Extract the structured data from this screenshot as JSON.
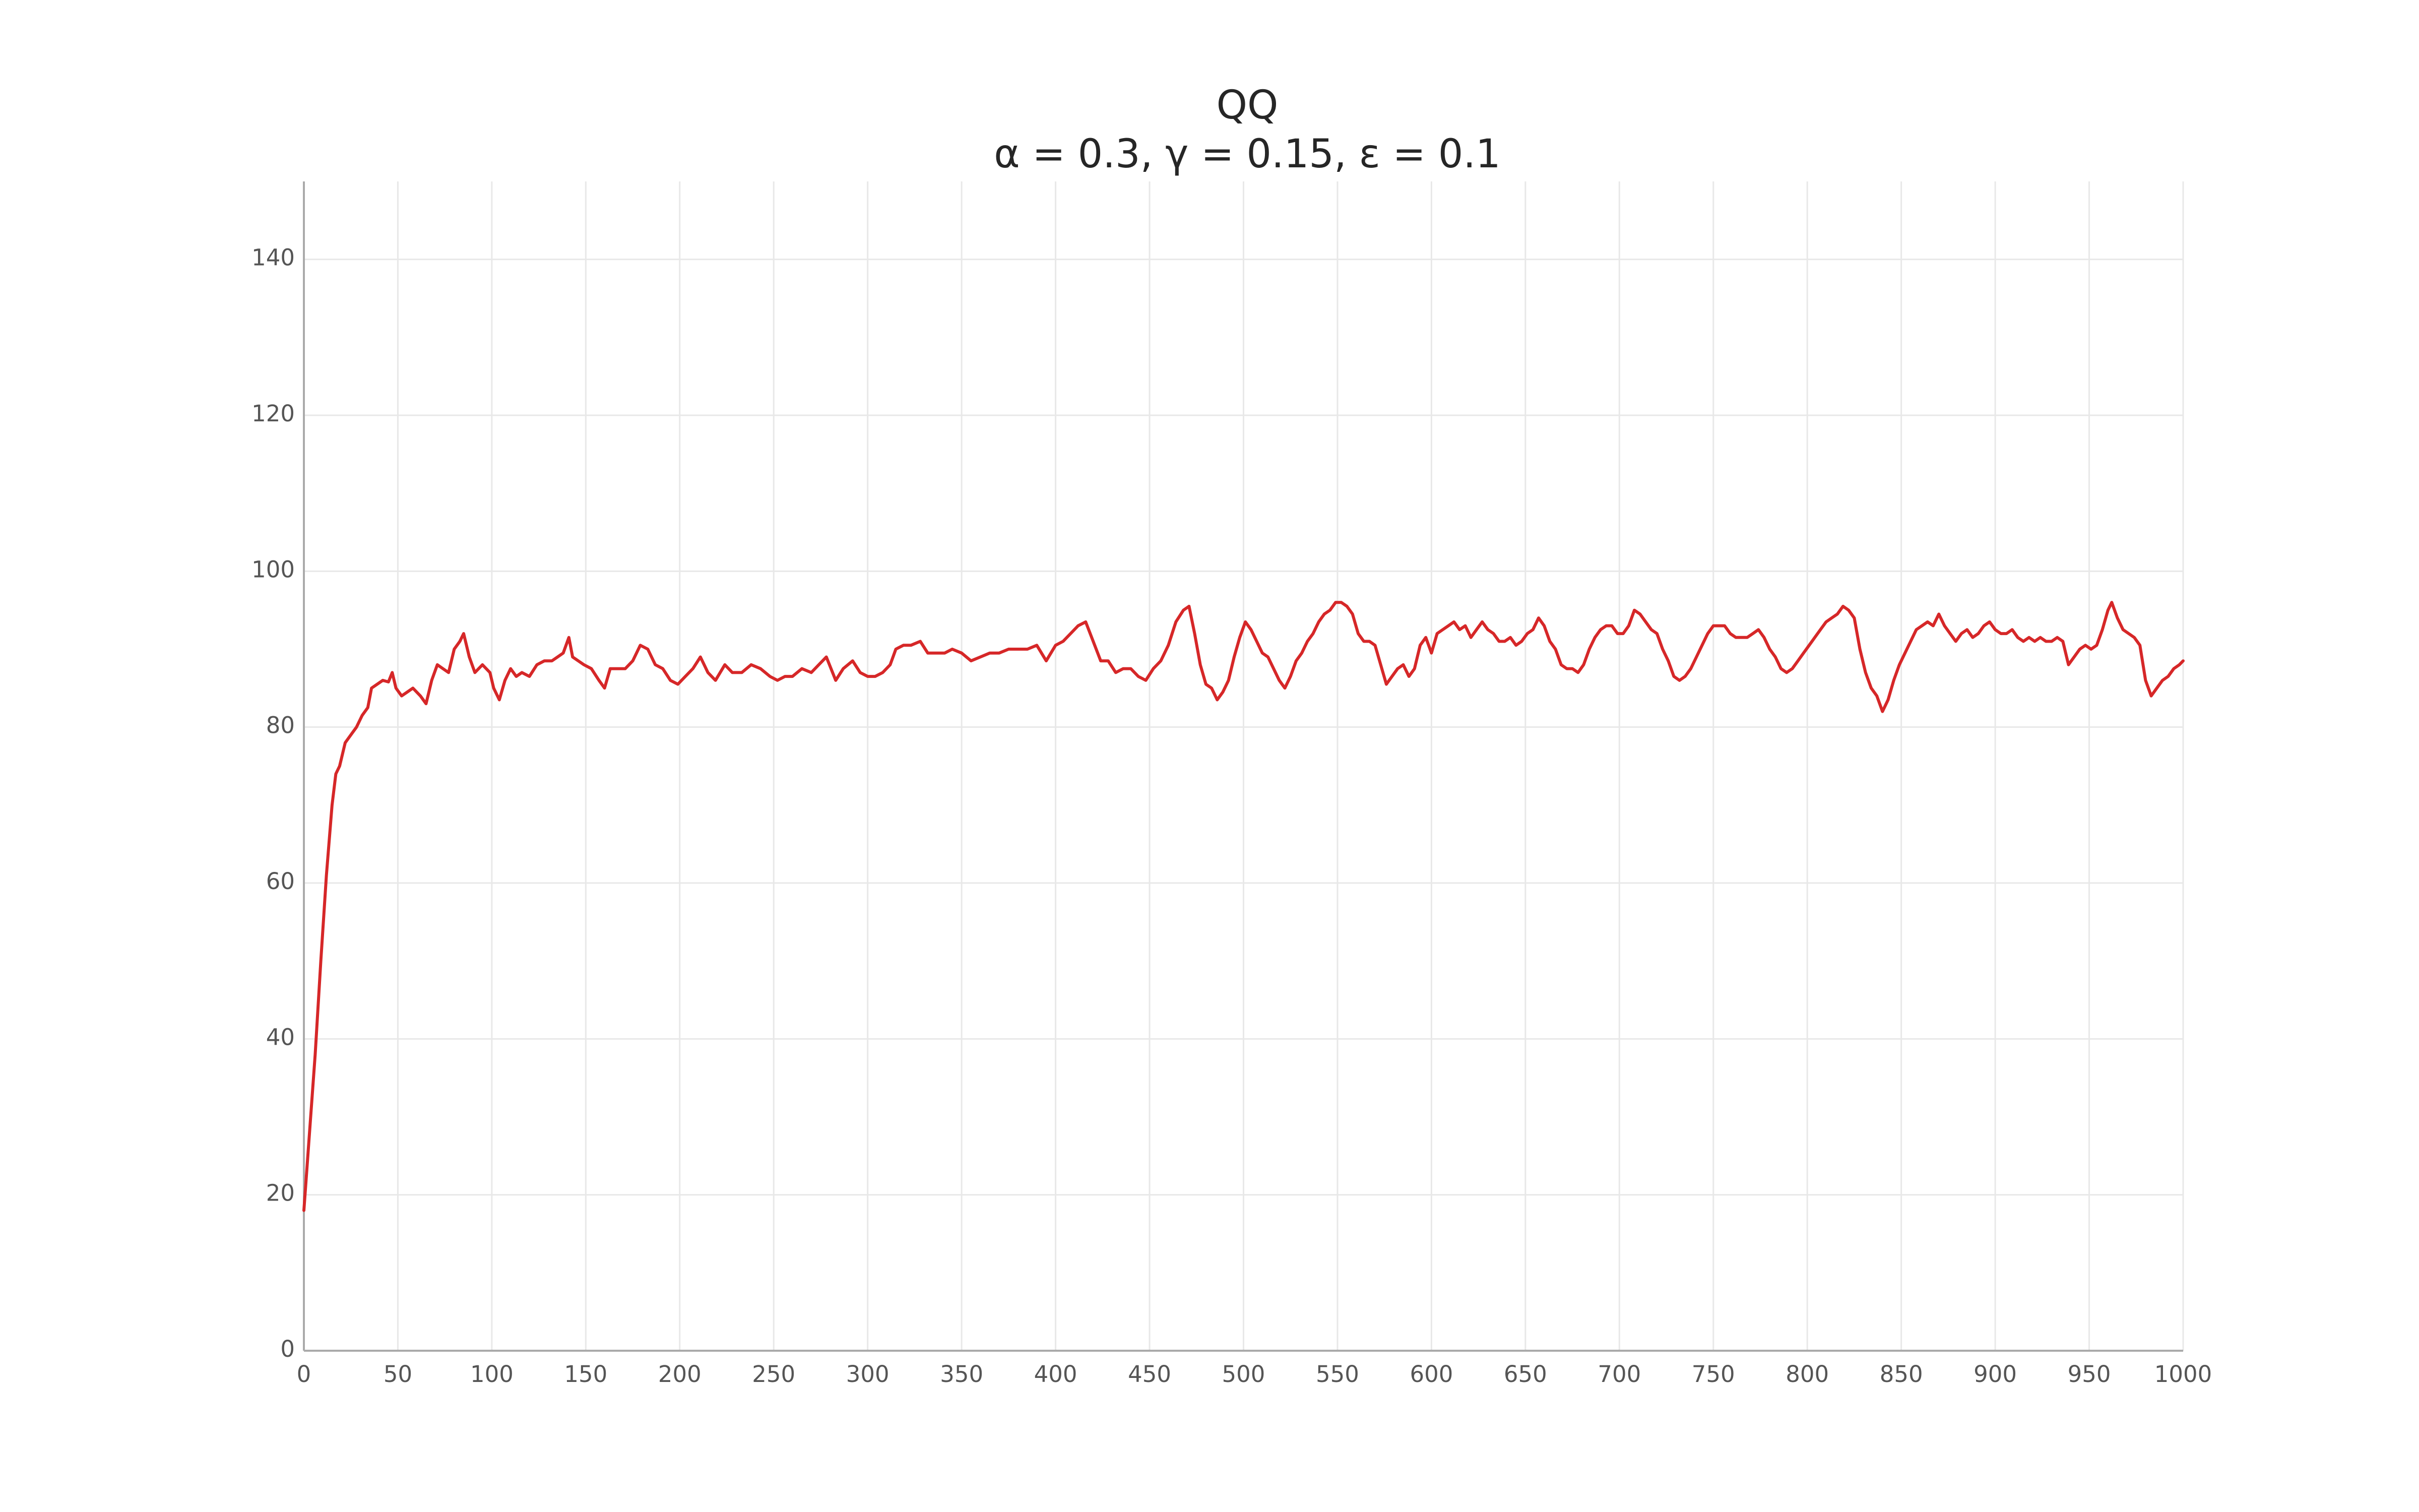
{
  "chart_data": {
    "type": "line",
    "title": "QQ",
    "subtitle": "α = 0.3, γ = 0.15, ε = 0.1",
    "xlabel": "",
    "ylabel": "",
    "xlim": [
      0,
      1000
    ],
    "ylim": [
      0,
      150
    ],
    "xticks": [
      0,
      50,
      100,
      150,
      200,
      250,
      300,
      350,
      400,
      450,
      500,
      550,
      600,
      650,
      700,
      750,
      800,
      850,
      900,
      950,
      1000
    ],
    "yticks": [
      0,
      20,
      40,
      60,
      80,
      100,
      120,
      140
    ],
    "grid": true,
    "legend": "none",
    "line_color": "#d62728",
    "series": [
      {
        "points": [
          [
            0,
            18
          ],
          [
            3,
            28
          ],
          [
            6,
            38
          ],
          [
            9,
            50
          ],
          [
            12,
            61
          ],
          [
            15,
            70
          ],
          [
            17,
            74
          ],
          [
            19,
            75
          ],
          [
            22,
            78
          ],
          [
            25,
            79
          ],
          [
            28,
            80
          ],
          [
            31,
            81.5
          ],
          [
            34,
            82.5
          ],
          [
            36,
            85
          ],
          [
            39,
            85.5
          ],
          [
            42,
            86
          ],
          [
            45,
            85.8
          ],
          [
            47,
            87
          ],
          [
            49,
            85
          ],
          [
            52,
            84
          ],
          [
            55,
            84.5
          ],
          [
            58,
            85
          ],
          [
            62,
            84
          ],
          [
            65,
            83
          ],
          [
            68,
            86
          ],
          [
            71,
            88
          ],
          [
            74,
            87.5
          ],
          [
            77,
            87
          ],
          [
            80,
            90
          ],
          [
            83,
            91
          ],
          [
            85,
            92
          ],
          [
            88,
            89
          ],
          [
            91,
            87
          ],
          [
            95,
            88
          ],
          [
            99,
            87
          ],
          [
            101,
            85
          ],
          [
            104,
            83.5
          ],
          [
            107,
            86
          ],
          [
            110,
            87.5
          ],
          [
            113,
            86.5
          ],
          [
            116,
            87
          ],
          [
            120,
            86.5
          ],
          [
            124,
            88
          ],
          [
            128,
            88.5
          ],
          [
            132,
            88.5
          ],
          [
            135,
            89
          ],
          [
            138,
            89.5
          ],
          [
            141,
            91.5
          ],
          [
            143,
            89
          ],
          [
            146,
            88.5
          ],
          [
            149,
            88
          ],
          [
            153,
            87.5
          ],
          [
            157,
            86
          ],
          [
            160,
            85
          ],
          [
            163,
            87.5
          ],
          [
            167,
            87.5
          ],
          [
            171,
            87.5
          ],
          [
            175,
            88.5
          ],
          [
            179,
            90.5
          ],
          [
            183,
            90
          ],
          [
            187,
            88
          ],
          [
            191,
            87.5
          ],
          [
            195,
            86
          ],
          [
            199,
            85.5
          ],
          [
            203,
            86.5
          ],
          [
            207,
            87.5
          ],
          [
            211,
            89
          ],
          [
            215,
            87
          ],
          [
            219,
            86
          ],
          [
            224,
            88
          ],
          [
            228,
            87
          ],
          [
            233,
            87
          ],
          [
            238,
            88
          ],
          [
            243,
            87.5
          ],
          [
            248,
            86.5
          ],
          [
            252,
            86
          ],
          [
            256,
            86.5
          ],
          [
            260,
            86.5
          ],
          [
            265,
            87.5
          ],
          [
            270,
            87
          ],
          [
            274,
            88
          ],
          [
            278,
            89
          ],
          [
            283,
            86
          ],
          [
            287,
            87.5
          ],
          [
            292,
            88.5
          ],
          [
            296,
            87
          ],
          [
            300,
            86.5
          ],
          [
            304,
            86.5
          ],
          [
            308,
            87
          ],
          [
            312,
            88
          ],
          [
            315,
            90
          ],
          [
            319,
            90.5
          ],
          [
            323,
            90.5
          ],
          [
            328,
            91
          ],
          [
            332,
            89.5
          ],
          [
            336,
            89.5
          ],
          [
            341,
            89.5
          ],
          [
            345,
            90
          ],
          [
            350,
            89.5
          ],
          [
            355,
            88.5
          ],
          [
            360,
            89
          ],
          [
            365,
            89.5
          ],
          [
            370,
            89.5
          ],
          [
            375,
            90
          ],
          [
            380,
            90
          ],
          [
            385,
            90
          ],
          [
            390,
            90.5
          ],
          [
            395,
            88.5
          ],
          [
            400,
            90.5
          ],
          [
            404,
            91
          ],
          [
            408,
            92
          ],
          [
            412,
            93
          ],
          [
            416,
            93.5
          ],
          [
            420,
            91
          ],
          [
            424,
            88.5
          ],
          [
            428,
            88.5
          ],
          [
            432,
            87
          ],
          [
            436,
            87.5
          ],
          [
            440,
            87.5
          ],
          [
            444,
            86.5
          ],
          [
            448,
            86
          ],
          [
            452,
            87.5
          ],
          [
            456,
            88.5
          ],
          [
            460,
            90.5
          ],
          [
            464,
            93.5
          ],
          [
            468,
            95
          ],
          [
            471,
            95.5
          ],
          [
            474,
            92
          ],
          [
            477,
            88
          ],
          [
            480,
            85.5
          ],
          [
            483,
            85
          ],
          [
            486,
            83.5
          ],
          [
            489,
            84.5
          ],
          [
            492,
            86
          ],
          [
            495,
            89
          ],
          [
            498,
            91.5
          ],
          [
            501,
            93.5
          ],
          [
            504,
            92.5
          ],
          [
            507,
            91
          ],
          [
            510,
            89.5
          ],
          [
            513,
            89
          ],
          [
            516,
            87.5
          ],
          [
            519,
            86
          ],
          [
            522,
            85
          ],
          [
            525,
            86.5
          ],
          [
            528,
            88.5
          ],
          [
            531,
            89.5
          ],
          [
            534,
            91
          ],
          [
            537,
            92
          ],
          [
            540,
            93.5
          ],
          [
            543,
            94.5
          ],
          [
            546,
            95
          ],
          [
            549,
            96
          ],
          [
            552,
            96
          ],
          [
            555,
            95.5
          ],
          [
            558,
            94.5
          ],
          [
            561,
            92
          ],
          [
            564,
            91
          ],
          [
            567,
            91
          ],
          [
            570,
            90.5
          ],
          [
            573,
            88
          ],
          [
            576,
            85.5
          ],
          [
            579,
            86.5
          ],
          [
            582,
            87.5
          ],
          [
            585,
            88
          ],
          [
            588,
            86.5
          ],
          [
            591,
            87.5
          ],
          [
            594,
            90.5
          ],
          [
            597,
            91.5
          ],
          [
            600,
            89.5
          ],
          [
            603,
            92
          ],
          [
            606,
            92.5
          ],
          [
            609,
            93
          ],
          [
            612,
            93.5
          ],
          [
            615,
            92.5
          ],
          [
            618,
            93
          ],
          [
            621,
            91.5
          ],
          [
            624,
            92.5
          ],
          [
            627,
            93.5
          ],
          [
            630,
            92.5
          ],
          [
            633,
            92
          ],
          [
            636,
            91
          ],
          [
            639,
            91
          ],
          [
            642,
            91.5
          ],
          [
            645,
            90.5
          ],
          [
            648,
            91
          ],
          [
            651,
            92
          ],
          [
            654,
            92.5
          ],
          [
            657,
            94
          ],
          [
            660,
            93
          ],
          [
            663,
            91
          ],
          [
            666,
            90
          ],
          [
            669,
            88
          ],
          [
            672,
            87.5
          ],
          [
            675,
            87.5
          ],
          [
            678,
            87
          ],
          [
            681,
            88
          ],
          [
            684,
            90
          ],
          [
            687,
            91.5
          ],
          [
            690,
            92.5
          ],
          [
            693,
            93
          ],
          [
            696,
            93
          ],
          [
            699,
            92
          ],
          [
            702,
            92
          ],
          [
            705,
            93
          ],
          [
            708,
            95
          ],
          [
            711,
            94.5
          ],
          [
            714,
            93.5
          ],
          [
            717,
            92.5
          ],
          [
            720,
            92
          ],
          [
            723,
            90
          ],
          [
            726,
            88.5
          ],
          [
            729,
            86.5
          ],
          [
            732,
            86
          ],
          [
            735,
            86.5
          ],
          [
            738,
            87.5
          ],
          [
            741,
            89
          ],
          [
            744,
            90.5
          ],
          [
            747,
            92
          ],
          [
            750,
            93
          ],
          [
            753,
            93
          ],
          [
            756,
            93
          ],
          [
            759,
            92
          ],
          [
            762,
            91.5
          ],
          [
            765,
            91.5
          ],
          [
            768,
            91.5
          ],
          [
            771,
            92
          ],
          [
            774,
            92.5
          ],
          [
            777,
            91.5
          ],
          [
            780,
            90
          ],
          [
            783,
            89
          ],
          [
            786,
            87.5
          ],
          [
            789,
            87
          ],
          [
            792,
            87.5
          ],
          [
            795,
            88.5
          ],
          [
            798,
            89.5
          ],
          [
            801,
            90.5
          ],
          [
            804,
            91.5
          ],
          [
            807,
            92.5
          ],
          [
            810,
            93.5
          ],
          [
            813,
            94
          ],
          [
            816,
            94.5
          ],
          [
            819,
            95.5
          ],
          [
            822,
            95
          ],
          [
            825,
            94
          ],
          [
            828,
            90
          ],
          [
            831,
            87
          ],
          [
            834,
            85
          ],
          [
            837,
            84
          ],
          [
            840,
            82
          ],
          [
            843,
            83.5
          ],
          [
            846,
            86
          ],
          [
            849,
            88
          ],
          [
            852,
            89.5
          ],
          [
            855,
            91
          ],
          [
            858,
            92.5
          ],
          [
            861,
            93
          ],
          [
            864,
            93.5
          ],
          [
            867,
            93
          ],
          [
            870,
            94.5
          ],
          [
            873,
            93
          ],
          [
            876,
            92
          ],
          [
            879,
            91
          ],
          [
            882,
            92
          ],
          [
            885,
            92.5
          ],
          [
            888,
            91.5
          ],
          [
            891,
            92
          ],
          [
            894,
            93
          ],
          [
            897,
            93.5
          ],
          [
            900,
            92.5
          ],
          [
            903,
            92
          ],
          [
            906,
            92
          ],
          [
            909,
            92.5
          ],
          [
            912,
            91.5
          ],
          [
            915,
            91
          ],
          [
            918,
            91.5
          ],
          [
            921,
            91
          ],
          [
            924,
            91.5
          ],
          [
            927,
            91
          ],
          [
            930,
            91
          ],
          [
            933,
            91.5
          ],
          [
            936,
            91
          ],
          [
            939,
            88
          ],
          [
            942,
            89
          ],
          [
            945,
            90
          ],
          [
            948,
            90.5
          ],
          [
            951,
            90
          ],
          [
            954,
            90.5
          ],
          [
            957,
            92.5
          ],
          [
            960,
            95
          ],
          [
            962,
            96
          ],
          [
            965,
            94
          ],
          [
            968,
            92.5
          ],
          [
            971,
            92
          ],
          [
            974,
            91.5
          ],
          [
            977,
            90.5
          ],
          [
            980,
            86
          ],
          [
            983,
            84
          ],
          [
            986,
            85
          ],
          [
            989,
            86
          ],
          [
            992,
            86.5
          ],
          [
            995,
            87.5
          ],
          [
            998,
            88
          ],
          [
            1000,
            88.5
          ]
        ]
      }
    ]
  }
}
